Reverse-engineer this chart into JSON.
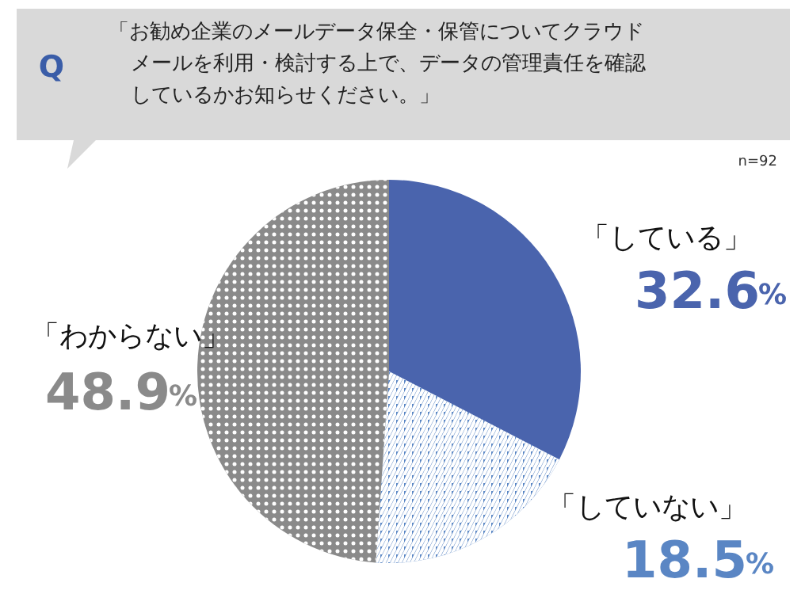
{
  "chart_data": {
    "type": "pie",
    "title": "「お勧め企業のメールデータ保全・保管についてクラウドメールを利用・検討する上で、データの管理責任を確認しているかお知らせください。」",
    "categories": [
      "「している」",
      "「していない」",
      "「わからない」"
    ],
    "values": [
      32.6,
      18.5,
      48.9
    ],
    "colors": [
      "#4a64ad",
      "#5a86c4",
      "#8a8a8a"
    ],
    "value_labels": [
      "32.6%",
      "18.5%",
      "48.9%"
    ],
    "annotations": [
      "Q",
      "n=92"
    ]
  }
}
